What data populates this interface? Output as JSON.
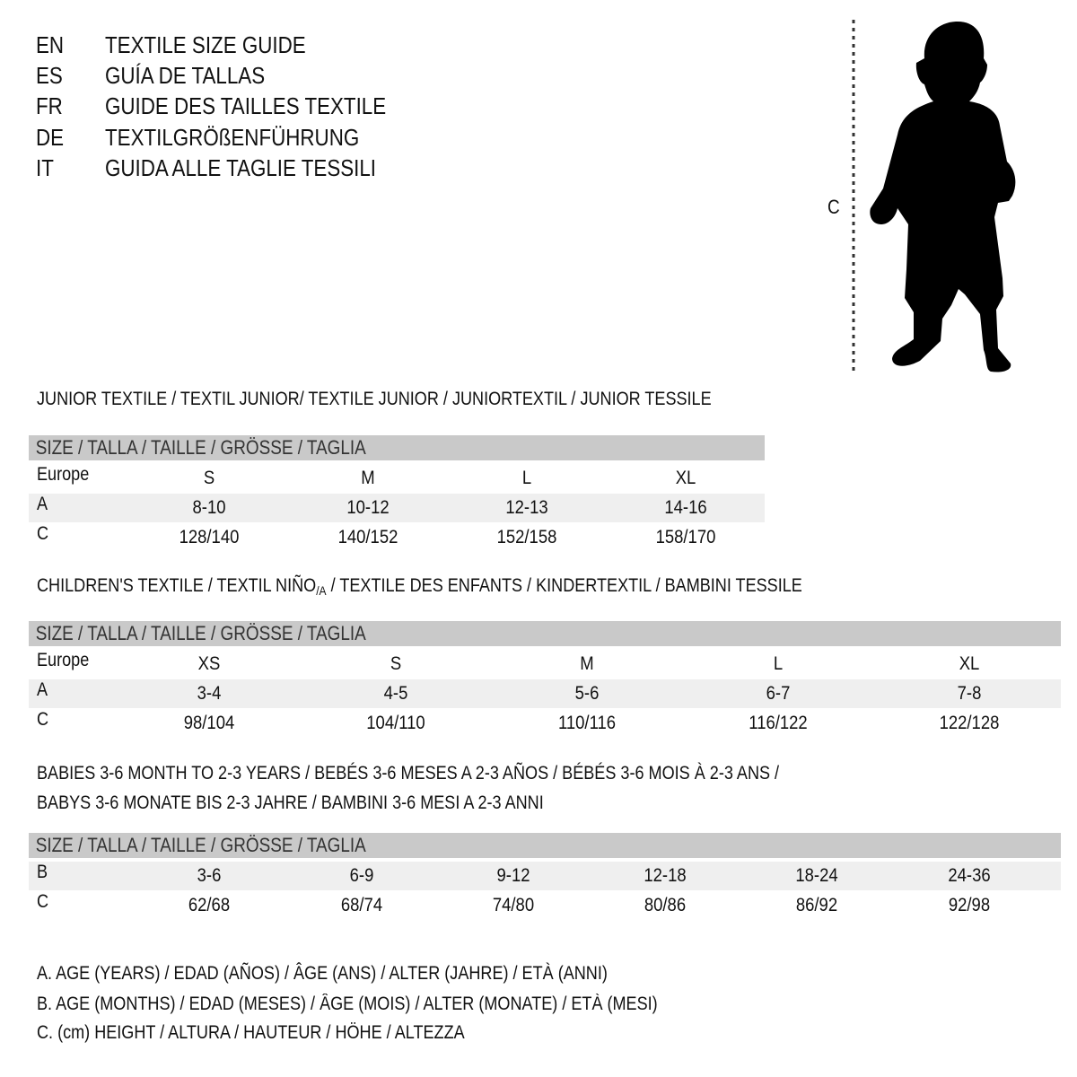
{
  "languages": [
    {
      "code": "EN",
      "title": "TEXTILE SIZE GUIDE"
    },
    {
      "code": "ES",
      "title": "GUÍA DE TALLAS"
    },
    {
      "code": "FR",
      "title": "GUIDE DES TAILLES TEXTILE"
    },
    {
      "code": "DE",
      "title": "TEXTILGRÖßENFÜHRUNG"
    },
    {
      "code": "IT",
      "title": "GUIDA ALLE TAGLIE TESSILI"
    }
  ],
  "figure": {
    "height_label": "C",
    "icon": "child-silhouette"
  },
  "junior": {
    "title": "JUNIOR TEXTILE / TEXTIL JUNIOR/ TEXTILE JUNIOR / JUNIORTEXTIL / JUNIOR TESSILE",
    "header": "SIZE / TALLA / TAILLE / GRÖSSE / TAGLIA",
    "rows": [
      {
        "label": "Europe",
        "values": [
          "S",
          "M",
          "L",
          "XL"
        ]
      },
      {
        "label": "A",
        "values": [
          "8-10",
          "10-12",
          "12-13",
          "14-16"
        ]
      },
      {
        "label": "C",
        "values": [
          "128/140",
          "140/152",
          "152/158",
          "158/170"
        ]
      }
    ]
  },
  "children": {
    "title_prefix": "CHILDREN'S TEXTILE / TEXTIL NIÑO",
    "title_sub": "/A",
    "title_suffix": " / TEXTILE DES ENFANTS / KINDERTEXTIL / BAMBINI TESSILE",
    "header": "SIZE / TALLA / TAILLE / GRÖSSE / TAGLIA",
    "rows": [
      {
        "label": "Europe",
        "values": [
          "XS",
          "S",
          "M",
          "L",
          "XL"
        ]
      },
      {
        "label": "A",
        "values": [
          "3-4",
          "4-5",
          "5-6",
          "6-7",
          "7-8"
        ]
      },
      {
        "label": "C",
        "values": [
          "98/104",
          "104/110",
          "110/116",
          "116/122",
          "122/128"
        ]
      }
    ]
  },
  "babies": {
    "title_line1": "BABIES 3-6 MONTH TO 2-3 YEARS / BEBÉS 3-6 MESES A 2-3 AÑOS / BÉBÉS 3-6 MOIS À 2-3 ANS /",
    "title_line2": "BABYS 3-6 MONATE BIS 2-3 JAHRE / BAMBINI 3-6 MESI A 2-3 ANNI",
    "header": "SIZE / TALLA / TAILLE / GRÖSSE / TAGLIA",
    "rows": [
      {
        "label": "B",
        "values": [
          "3-6",
          "6-9",
          "9-12",
          "12-18",
          "18-24",
          "24-36"
        ]
      },
      {
        "label": "C",
        "values": [
          "62/68",
          "68/74",
          "74/80",
          "80/86",
          "86/92",
          "92/98"
        ]
      }
    ]
  },
  "legend": [
    "A. AGE (YEARS) / EDAD (AÑOS) / ÂGE (ANS) / ALTER (JAHRE) / ETÀ (ANNI)",
    "B. AGE (MONTHS) / EDAD (MESES) / ÂGE (MOIS) / ALTER (MONATE) / ETÀ (MESI)",
    "C. (cm) HEIGHT / ALTURA / HAUTEUR / HÖHE / ALTEZZA"
  ],
  "colors": {
    "header_band": "#c9c9c9",
    "shaded_row": "#efefef",
    "text": "#111111"
  }
}
